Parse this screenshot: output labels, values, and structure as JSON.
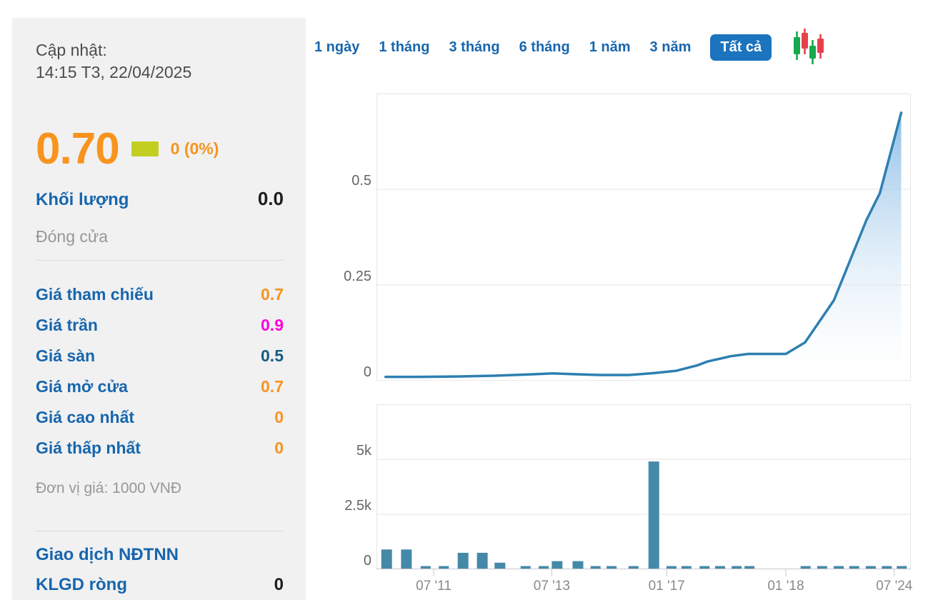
{
  "colors": {
    "panel_bg": "#f1f1f2",
    "accent_blue": "#1766ad",
    "active_tab_bg": "#1b74bd",
    "orange": "#f8941e",
    "change_square": "#c2ce20",
    "line": "#2e7fb2",
    "area_fill_top": "#79b3e2",
    "bar": "#4589a8",
    "grid": "#e6e6e6",
    "axis": "#c9c9c9",
    "candle_green": "#17a94e",
    "candle_red": "#e8404a"
  },
  "sidebar": {
    "updated_label": "Cập nhật:",
    "updated_time": "14:15 T3, 22/04/2025",
    "price": "0.70",
    "change": "0 (0%)",
    "volume_label": "Khối lượng",
    "volume_value": "0.0",
    "close_label": "Đóng cửa",
    "rows": [
      {
        "label": "Giá tham chiếu",
        "value": "0.7",
        "color": "#f8941e"
      },
      {
        "label": "Giá trần",
        "value": "0.9",
        "color": "#ff00dd"
      },
      {
        "label": "Giá sàn",
        "value": "0.5",
        "color": "#155c80"
      },
      {
        "label": "Giá mở cửa",
        "value": "0.7",
        "color": "#f8941e"
      },
      {
        "label": "Giá cao nhất",
        "value": "0",
        "color": "#f8941e"
      },
      {
        "label": "Giá thấp nhất",
        "value": "0",
        "color": "#f8941e"
      }
    ],
    "unit_note": "Đơn vị giá: 1000 VNĐ",
    "foreign_header": "Giao dịch NĐTNN",
    "net_klgd_label": "KLGD ròng",
    "net_klgd_value": "0"
  },
  "range_tabs": {
    "active_index": 6,
    "items": [
      {
        "label": "1 ngày"
      },
      {
        "label": "1 tháng"
      },
      {
        "label": "3 tháng"
      },
      {
        "label": "6 tháng"
      },
      {
        "label": "1 năm"
      },
      {
        "label": "3 năm"
      },
      {
        "label": "Tất cả"
      }
    ]
  },
  "chart_data": [
    {
      "type": "area",
      "title": "",
      "ylabel": "",
      "ylim": [
        0,
        0.75
      ],
      "grid": true,
      "y_ticks": [
        {
          "label": "0",
          "value": 0
        },
        {
          "label": "0.25",
          "value": 0.25
        },
        {
          "label": "0.5",
          "value": 0.5
        }
      ],
      "series": [
        {
          "name": "close-price-1000vnd",
          "points": [
            [
              0.017,
              0.01
            ],
            [
              0.08,
              0.01
            ],
            [
              0.15,
              0.011
            ],
            [
              0.22,
              0.013
            ],
            [
              0.28,
              0.016
            ],
            [
              0.33,
              0.019
            ],
            [
              0.37,
              0.017
            ],
            [
              0.42,
              0.015
            ],
            [
              0.472,
              0.015
            ],
            [
              0.52,
              0.02
            ],
            [
              0.561,
              0.026
            ],
            [
              0.6,
              0.04
            ],
            [
              0.619,
              0.05
            ],
            [
              0.663,
              0.064
            ],
            [
              0.695,
              0.07
            ],
            [
              0.73,
              0.07
            ],
            [
              0.766,
              0.07
            ],
            [
              0.802,
              0.1
            ],
            [
              0.856,
              0.21
            ],
            [
              0.917,
              0.42
            ],
            [
              0.942,
              0.49
            ],
            [
              0.982,
              0.7
            ]
          ]
        }
      ]
    },
    {
      "type": "bar",
      "title": "",
      "ylabel": "",
      "ylim": [
        0,
        7500
      ],
      "grid": true,
      "y_ticks": [
        {
          "label": "0",
          "value": 0
        },
        {
          "label": "2.5k",
          "value": 2500
        },
        {
          "label": "5k",
          "value": 5000
        }
      ],
      "x_ticks": [
        {
          "label": "07 '11",
          "pos": 0.107
        },
        {
          "label": "07 '13",
          "pos": 0.328
        },
        {
          "label": "01 '17",
          "pos": 0.543
        },
        {
          "label": "01 '18",
          "pos": 0.766
        },
        {
          "label": "07 '24",
          "pos": 0.969
        }
      ],
      "bars": [
        [
          0.019,
          900
        ],
        [
          0.056,
          900
        ],
        [
          0.092,
          0
        ],
        [
          0.126,
          0
        ],
        [
          0.162,
          750
        ],
        [
          0.198,
          750
        ],
        [
          0.231,
          300
        ],
        [
          0.279,
          0
        ],
        [
          0.313,
          0
        ],
        [
          0.338,
          370
        ],
        [
          0.377,
          370
        ],
        [
          0.41,
          0
        ],
        [
          0.44,
          0
        ],
        [
          0.481,
          0
        ],
        [
          0.519,
          4900
        ],
        [
          0.552,
          0
        ],
        [
          0.58,
          0
        ],
        [
          0.614,
          0
        ],
        [
          0.643,
          0
        ],
        [
          0.674,
          0
        ],
        [
          0.698,
          0
        ],
        [
          0.803,
          0
        ],
        [
          0.834,
          0
        ],
        [
          0.865,
          0
        ],
        [
          0.894,
          0
        ],
        [
          0.925,
          0
        ],
        [
          0.955,
          0
        ],
        [
          0.983,
          0
        ]
      ]
    }
  ]
}
